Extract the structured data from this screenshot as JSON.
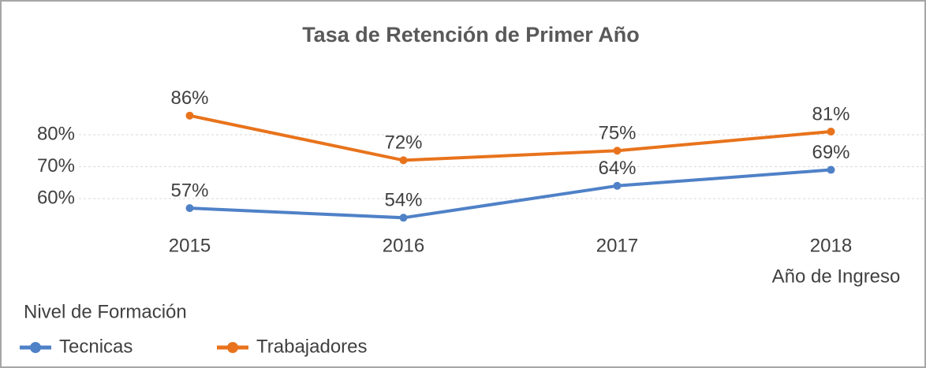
{
  "chart_data": {
    "type": "line",
    "title": "Tasa de Retención de Primer Año",
    "x_label": "Año de Ingreso",
    "legend_title": "Nivel de Formación",
    "categories": [
      "2015",
      "2016",
      "2017",
      "2018"
    ],
    "series": [
      {
        "name": "Tecnicas",
        "color": "#4f81c7",
        "values": [
          57,
          54,
          64,
          69
        ],
        "value_labels": [
          "57%",
          "54%",
          "64%",
          "69%"
        ]
      },
      {
        "name": "Trabajadores",
        "color": "#e8731c",
        "values": [
          86,
          72,
          75,
          81
        ],
        "value_labels": [
          "86%",
          "72%",
          "75%",
          "81%"
        ]
      }
    ],
    "ylim": [
      52,
      88
    ],
    "yticks": [
      {
        "value": 60,
        "label": "60%"
      },
      {
        "value": 70,
        "label": "70%"
      },
      {
        "value": 80,
        "label": "80%"
      }
    ],
    "grid": true
  }
}
